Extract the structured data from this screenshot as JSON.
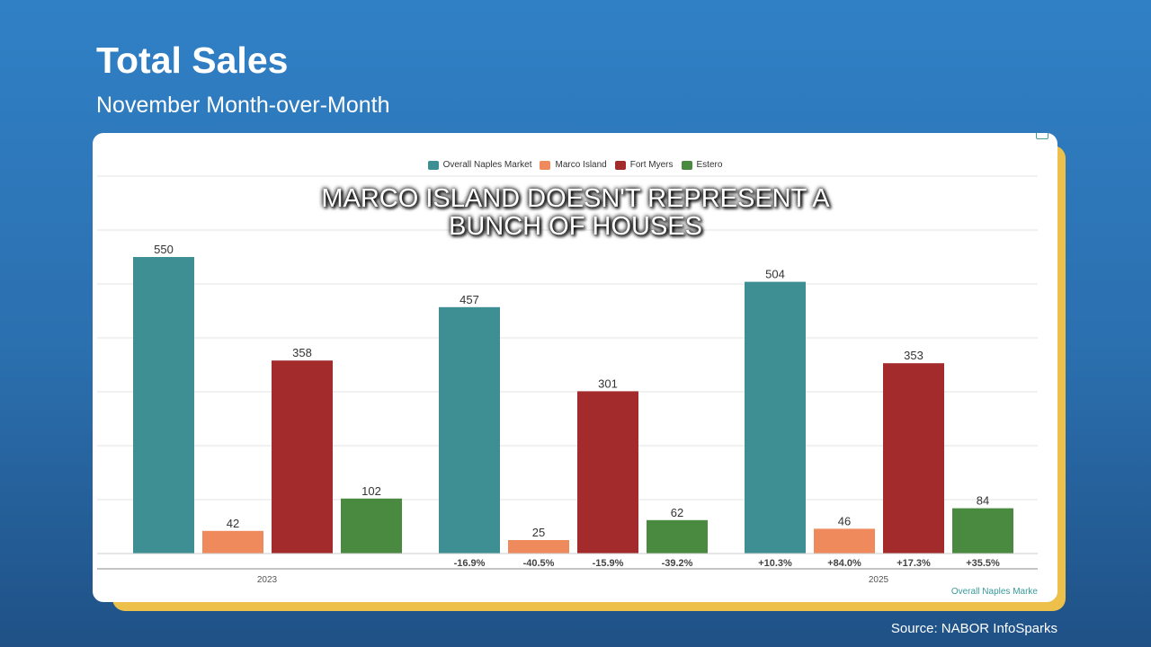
{
  "header": {
    "title": "Total Sales",
    "subtitle": "November Month-over-Month"
  },
  "caption": {
    "line1": "MARCO ISLAND DOESN'T REPRESENT A",
    "line2": "BUNCH OF HOUSES"
  },
  "source": "Source:  NABOR InfoSparks",
  "chart_link": "Overall Naples Marke",
  "chart_data": {
    "type": "bar",
    "title": "",
    "xlabel": "",
    "ylabel": "",
    "ylim": [
      0,
      700
    ],
    "grid": true,
    "legend": "top",
    "categories": [
      "2023",
      "",
      "2025"
    ],
    "series": [
      {
        "name": "Overall Naples Market",
        "color": "#3d8f94",
        "values": [
          550,
          457,
          504
        ],
        "changes": [
          "",
          "-16.9%",
          "+10.3%"
        ]
      },
      {
        "name": "Marco Island",
        "color": "#ee8a5b",
        "values": [
          42,
          25,
          46
        ],
        "changes": [
          "",
          "-40.5%",
          "+84.0%"
        ]
      },
      {
        "name": "Fort Myers",
        "color": "#a42b2b",
        "values": [
          358,
          301,
          353
        ],
        "changes": [
          "",
          "-15.9%",
          "+17.3%"
        ]
      },
      {
        "name": "Estero",
        "color": "#4a8a40",
        "values": [
          102,
          62,
          84
        ],
        "changes": [
          "",
          "-39.2%",
          "+35.5%"
        ]
      }
    ]
  }
}
